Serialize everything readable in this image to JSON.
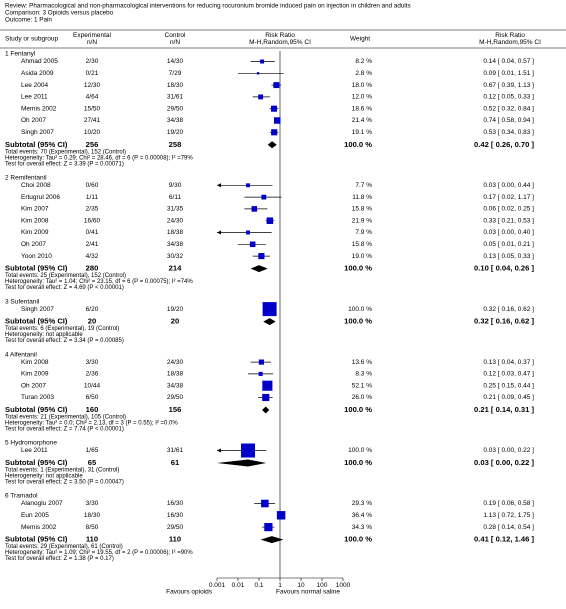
{
  "header": {
    "review": "Review:  Pharmacological and non-pharmacological interventions for reducing rocuronium bromide induced pain on injection in children and adults",
    "comparison": "Comparison:  3 Opioids versus placebo",
    "outcome": "Outcome:  1 Pain"
  },
  "columns": {
    "study": "Study or subgroup",
    "experimental": "Experimental",
    "experimental_unit": "n/N",
    "control": "Control",
    "control_unit": "n/N",
    "plot": "Risk Ratio",
    "plot_method": "M-H,Random,95% CI",
    "weight": "Weight",
    "result": "Risk Ratio",
    "result_method": "M-H,Random,95% CI"
  },
  "chart_data": {
    "type": "forest",
    "log_scale": true,
    "xlim": [
      0.001,
      1000
    ],
    "xticks": [
      0.001,
      0.01,
      0.1,
      1,
      10,
      100,
      1000
    ],
    "reference_line": 1,
    "x_label_left": "Favours opioids",
    "x_label_right": "Favours normal saline",
    "square_color": "#0000c8",
    "diamond_color": "#000000",
    "groups": [
      {
        "name": "1 Fentanyl",
        "studies": [
          {
            "name": "Ahmad 2005",
            "experimental": "2/30",
            "control": "14/30",
            "weight": 8.2,
            "weight_label": "8.2 %",
            "rr": 0.14,
            "ci": [
              0.04,
              0.57
            ],
            "label": "0.14 [ 0.04, 0.57 ]"
          },
          {
            "name": "Asida 2009",
            "experimental": "0/21",
            "control": "7/29",
            "weight": 2.8,
            "weight_label": "2.8 %",
            "rr": 0.09,
            "ci": [
              0.01,
              1.51
            ],
            "label": "0.09 [ 0.01, 1.51 ]"
          },
          {
            "name": "Lee 2004",
            "experimental": "12/30",
            "control": "18/30",
            "weight": 18.0,
            "weight_label": "18.0 %",
            "rr": 0.67,
            "ci": [
              0.39,
              1.13
            ],
            "label": "0.67 [ 0.39, 1.13 ]"
          },
          {
            "name": "Lee 2011",
            "experimental": "4/64",
            "control": "31/61",
            "weight": 12.0,
            "weight_label": "12.0 %",
            "rr": 0.12,
            "ci": [
              0.05,
              0.33
            ],
            "label": "0.12 [ 0.05, 0.33 ]"
          },
          {
            "name": "Memis 2002",
            "experimental": "15/50",
            "control": "29/50",
            "weight": 18.6,
            "weight_label": "18.6 %",
            "rr": 0.52,
            "ci": [
              0.32,
              0.84
            ],
            "label": "0.52 [ 0.32, 0.84 ]"
          },
          {
            "name": "Oh 2007",
            "experimental": "27/41",
            "control": "34/38",
            "weight": 21.4,
            "weight_label": "21.4 %",
            "rr": 0.74,
            "ci": [
              0.58,
              0.94
            ],
            "label": "0.74 [ 0.58, 0.94 ]"
          },
          {
            "name": "Singh 2007",
            "experimental": "10/20",
            "control": "19/20",
            "weight": 19.1,
            "weight_label": "19.1 %",
            "rr": 0.53,
            "ci": [
              0.34,
              0.83
            ],
            "label": "0.53 [ 0.34, 0.83 ]"
          }
        ],
        "subtotal": {
          "name": "Subtotal (95% CI)",
          "experimental": 256,
          "control": 258,
          "weight_label": "100.0 %",
          "rr": 0.42,
          "ci": [
            0.26,
            0.7
          ],
          "label": "0.42 [ 0.26, 0.70 ]"
        },
        "notes": [
          "Total events: 70 (Experimental), 152 (Control)",
          "Heterogeneity: Tau² = 0.29; Chi² = 28.46, df = 6 (P = 0.00008); I² =79%",
          "Test for overall effect: Z = 3.39 (P = 0.00071)"
        ]
      },
      {
        "name": "2 Remifentanil",
        "studies": [
          {
            "name": "Choi 2008",
            "experimental": "0/60",
            "control": "9/30",
            "weight": 7.7,
            "weight_label": "7.7 %",
            "rr": 0.03,
            "ci": [
              0.0,
              0.44
            ],
            "label": "0.03 [ 0.00, 0.44 ]"
          },
          {
            "name": "Ertugrul 2006",
            "experimental": "1/11",
            "control": "6/11",
            "weight": 11.8,
            "weight_label": "11.8 %",
            "rr": 0.17,
            "ci": [
              0.02,
              1.17
            ],
            "label": "0.17 [ 0.02, 1.17 ]"
          },
          {
            "name": "Kim 2007",
            "experimental": "2/35",
            "control": "31/35",
            "weight": 15.8,
            "weight_label": "15.8 %",
            "rr": 0.06,
            "ci": [
              0.02,
              0.25
            ],
            "label": "0.06 [ 0.02, 0.25 ]"
          },
          {
            "name": "Kim 2008",
            "experimental": "16/60",
            "control": "24/30",
            "weight": 21.9,
            "weight_label": "21.9 %",
            "rr": 0.33,
            "ci": [
              0.21,
              0.53
            ],
            "label": "0.33 [ 0.21, 0.53 ]"
          },
          {
            "name": "Kim 2009",
            "experimental": "0/41",
            "control": "18/38",
            "weight": 7.9,
            "weight_label": "7.9 %",
            "rr": 0.03,
            "ci": [
              0.0,
              0.4
            ],
            "label": "0.03 [ 0.00, 0.40 ]"
          },
          {
            "name": "Oh 2007",
            "experimental": "2/41",
            "control": "34/38",
            "weight": 15.8,
            "weight_label": "15.8 %",
            "rr": 0.05,
            "ci": [
              0.01,
              0.21
            ],
            "label": "0.05 [ 0.01, 0.21 ]"
          },
          {
            "name": "Yoon 2010",
            "experimental": "4/32",
            "control": "30/32",
            "weight": 19.0,
            "weight_label": "19.0 %",
            "rr": 0.13,
            "ci": [
              0.05,
              0.33
            ],
            "label": "0.13 [ 0.05, 0.33 ]"
          }
        ],
        "subtotal": {
          "name": "Subtotal (95% CI)",
          "experimental": 280,
          "control": 214,
          "weight_label": "100.0 %",
          "rr": 0.1,
          "ci": [
            0.04,
            0.26
          ],
          "label": "0.10 [ 0.04, 0.26 ]"
        },
        "notes": [
          "Total events: 25 (Experimental), 152 (Control)",
          "Heterogeneity: Tau² = 1.04; Chi² = 23.15, df = 6 (P = 0.00075); I² =74%",
          "Test for overall effect: Z = 4.69 (P < 0.00001)"
        ]
      },
      {
        "name": "3 Sufentanil",
        "studies": [
          {
            "name": "Singh 2007",
            "experimental": "6/20",
            "control": "19/20",
            "weight": 100.0,
            "weight_label": "100.0 %",
            "rr": 0.32,
            "ci": [
              0.16,
              0.62
            ],
            "label": "0.32 [ 0.16, 0.62 ]"
          }
        ],
        "subtotal": {
          "name": "Subtotal (95% CI)",
          "experimental": 20,
          "control": 20,
          "weight_label": "100.0 %",
          "rr": 0.32,
          "ci": [
            0.16,
            0.62
          ],
          "label": "0.32 [ 0.16, 0.62 ]"
        },
        "notes": [
          "Total events: 6 (Experimental), 19 (Control)",
          "Heterogeneity: not applicable",
          "Test for overall effect: Z = 3.34 (P = 0.00085)"
        ]
      },
      {
        "name": "4 Alfentanil",
        "studies": [
          {
            "name": "Kim 2008",
            "experimental": "3/30",
            "control": "24/30",
            "weight": 13.6,
            "weight_label": "13.6 %",
            "rr": 0.13,
            "ci": [
              0.04,
              0.37
            ],
            "label": "0.13 [ 0.04, 0.37 ]"
          },
          {
            "name": "Kim 2009",
            "experimental": "2/36",
            "control": "18/38",
            "weight": 8.3,
            "weight_label": "8.3 %",
            "rr": 0.12,
            "ci": [
              0.03,
              0.47
            ],
            "label": "0.12 [ 0.03, 0.47 ]"
          },
          {
            "name": "Oh 2007",
            "experimental": "10/44",
            "control": "34/38",
            "weight": 52.1,
            "weight_label": "52.1 %",
            "rr": 0.25,
            "ci": [
              0.15,
              0.44
            ],
            "label": "0.25 [ 0.15, 0.44 ]"
          },
          {
            "name": "Turan 2003",
            "experimental": "6/50",
            "control": "29/50",
            "weight": 26.0,
            "weight_label": "26.0 %",
            "rr": 0.21,
            "ci": [
              0.09,
              0.45
            ],
            "label": "0.21 [ 0.09, 0.45 ]"
          }
        ],
        "subtotal": {
          "name": "Subtotal (95% CI)",
          "experimental": 160,
          "control": 156,
          "weight_label": "100.0 %",
          "rr": 0.21,
          "ci": [
            0.14,
            0.31
          ],
          "label": "0.21 [ 0.14, 0.31 ]"
        },
        "notes": [
          "Total events: 21 (Experimental), 105 (Control)",
          "Heterogeneity: Tau² = 0.0; Chi² = 2.13, df = 3 (P = 0.55); I² =0.0%",
          "Test for overall effect: Z = 7.74 (P < 0.00001)"
        ]
      },
      {
        "name": "5 Hydromorphone",
        "studies": [
          {
            "name": "Lee 2011",
            "experimental": "1/65",
            "control": "31/61",
            "weight": 100.0,
            "weight_label": "100.0 %",
            "rr": 0.03,
            "ci": [
              0.0,
              0.22
            ],
            "label": "0.03 [ 0.00, 0.22 ]"
          }
        ],
        "subtotal": {
          "name": "Subtotal (95% CI)",
          "experimental": 65,
          "control": 61,
          "weight_label": "100.0 %",
          "rr": 0.03,
          "ci": [
            0.0,
            0.22
          ],
          "label": "0.03 [ 0.00, 0.22 ]"
        },
        "notes": [
          "Total events: 1 (Experimental), 31 (Control)",
          "Heterogeneity: not applicable",
          "Test for overall effect: Z = 3.50 (P = 0.00047)"
        ]
      },
      {
        "name": "6 Tramadol",
        "studies": [
          {
            "name": "Alanoglu 2007",
            "experimental": "3/30",
            "control": "16/30",
            "weight": 29.3,
            "weight_label": "29.3 %",
            "rr": 0.19,
            "ci": [
              0.06,
              0.58
            ],
            "label": "0.19 [ 0.06, 0.58 ]"
          },
          {
            "name": "Eun 2005",
            "experimental": "18/30",
            "control": "16/30",
            "weight": 36.4,
            "weight_label": "36.4 %",
            "rr": 1.13,
            "ci": [
              0.72,
              1.75
            ],
            "label": "1.13 [ 0.72, 1.75 ]"
          },
          {
            "name": "Memis 2002",
            "experimental": "8/50",
            "control": "29/50",
            "weight": 34.3,
            "weight_label": "34.3 %",
            "rr": 0.28,
            "ci": [
              0.14,
              0.54
            ],
            "label": "0.28 [ 0.14, 0.54 ]"
          }
        ],
        "subtotal": {
          "name": "Subtotal (95% CI)",
          "experimental": 110,
          "control": 110,
          "weight_label": "100.0 %",
          "rr": 0.41,
          "ci": [
            0.12,
            1.46
          ],
          "label": "0.41 [ 0.12, 1.46 ]"
        },
        "notes": [
          "Total events: 29 (Experimental), 61 (Control)",
          "Heterogeneity: Tau² = 1.09; Chi² = 19.55, df = 2 (P = 0.00006); I² =90%",
          "Test for overall effect: Z = 1.38 (P = 0.17)"
        ]
      }
    ]
  }
}
